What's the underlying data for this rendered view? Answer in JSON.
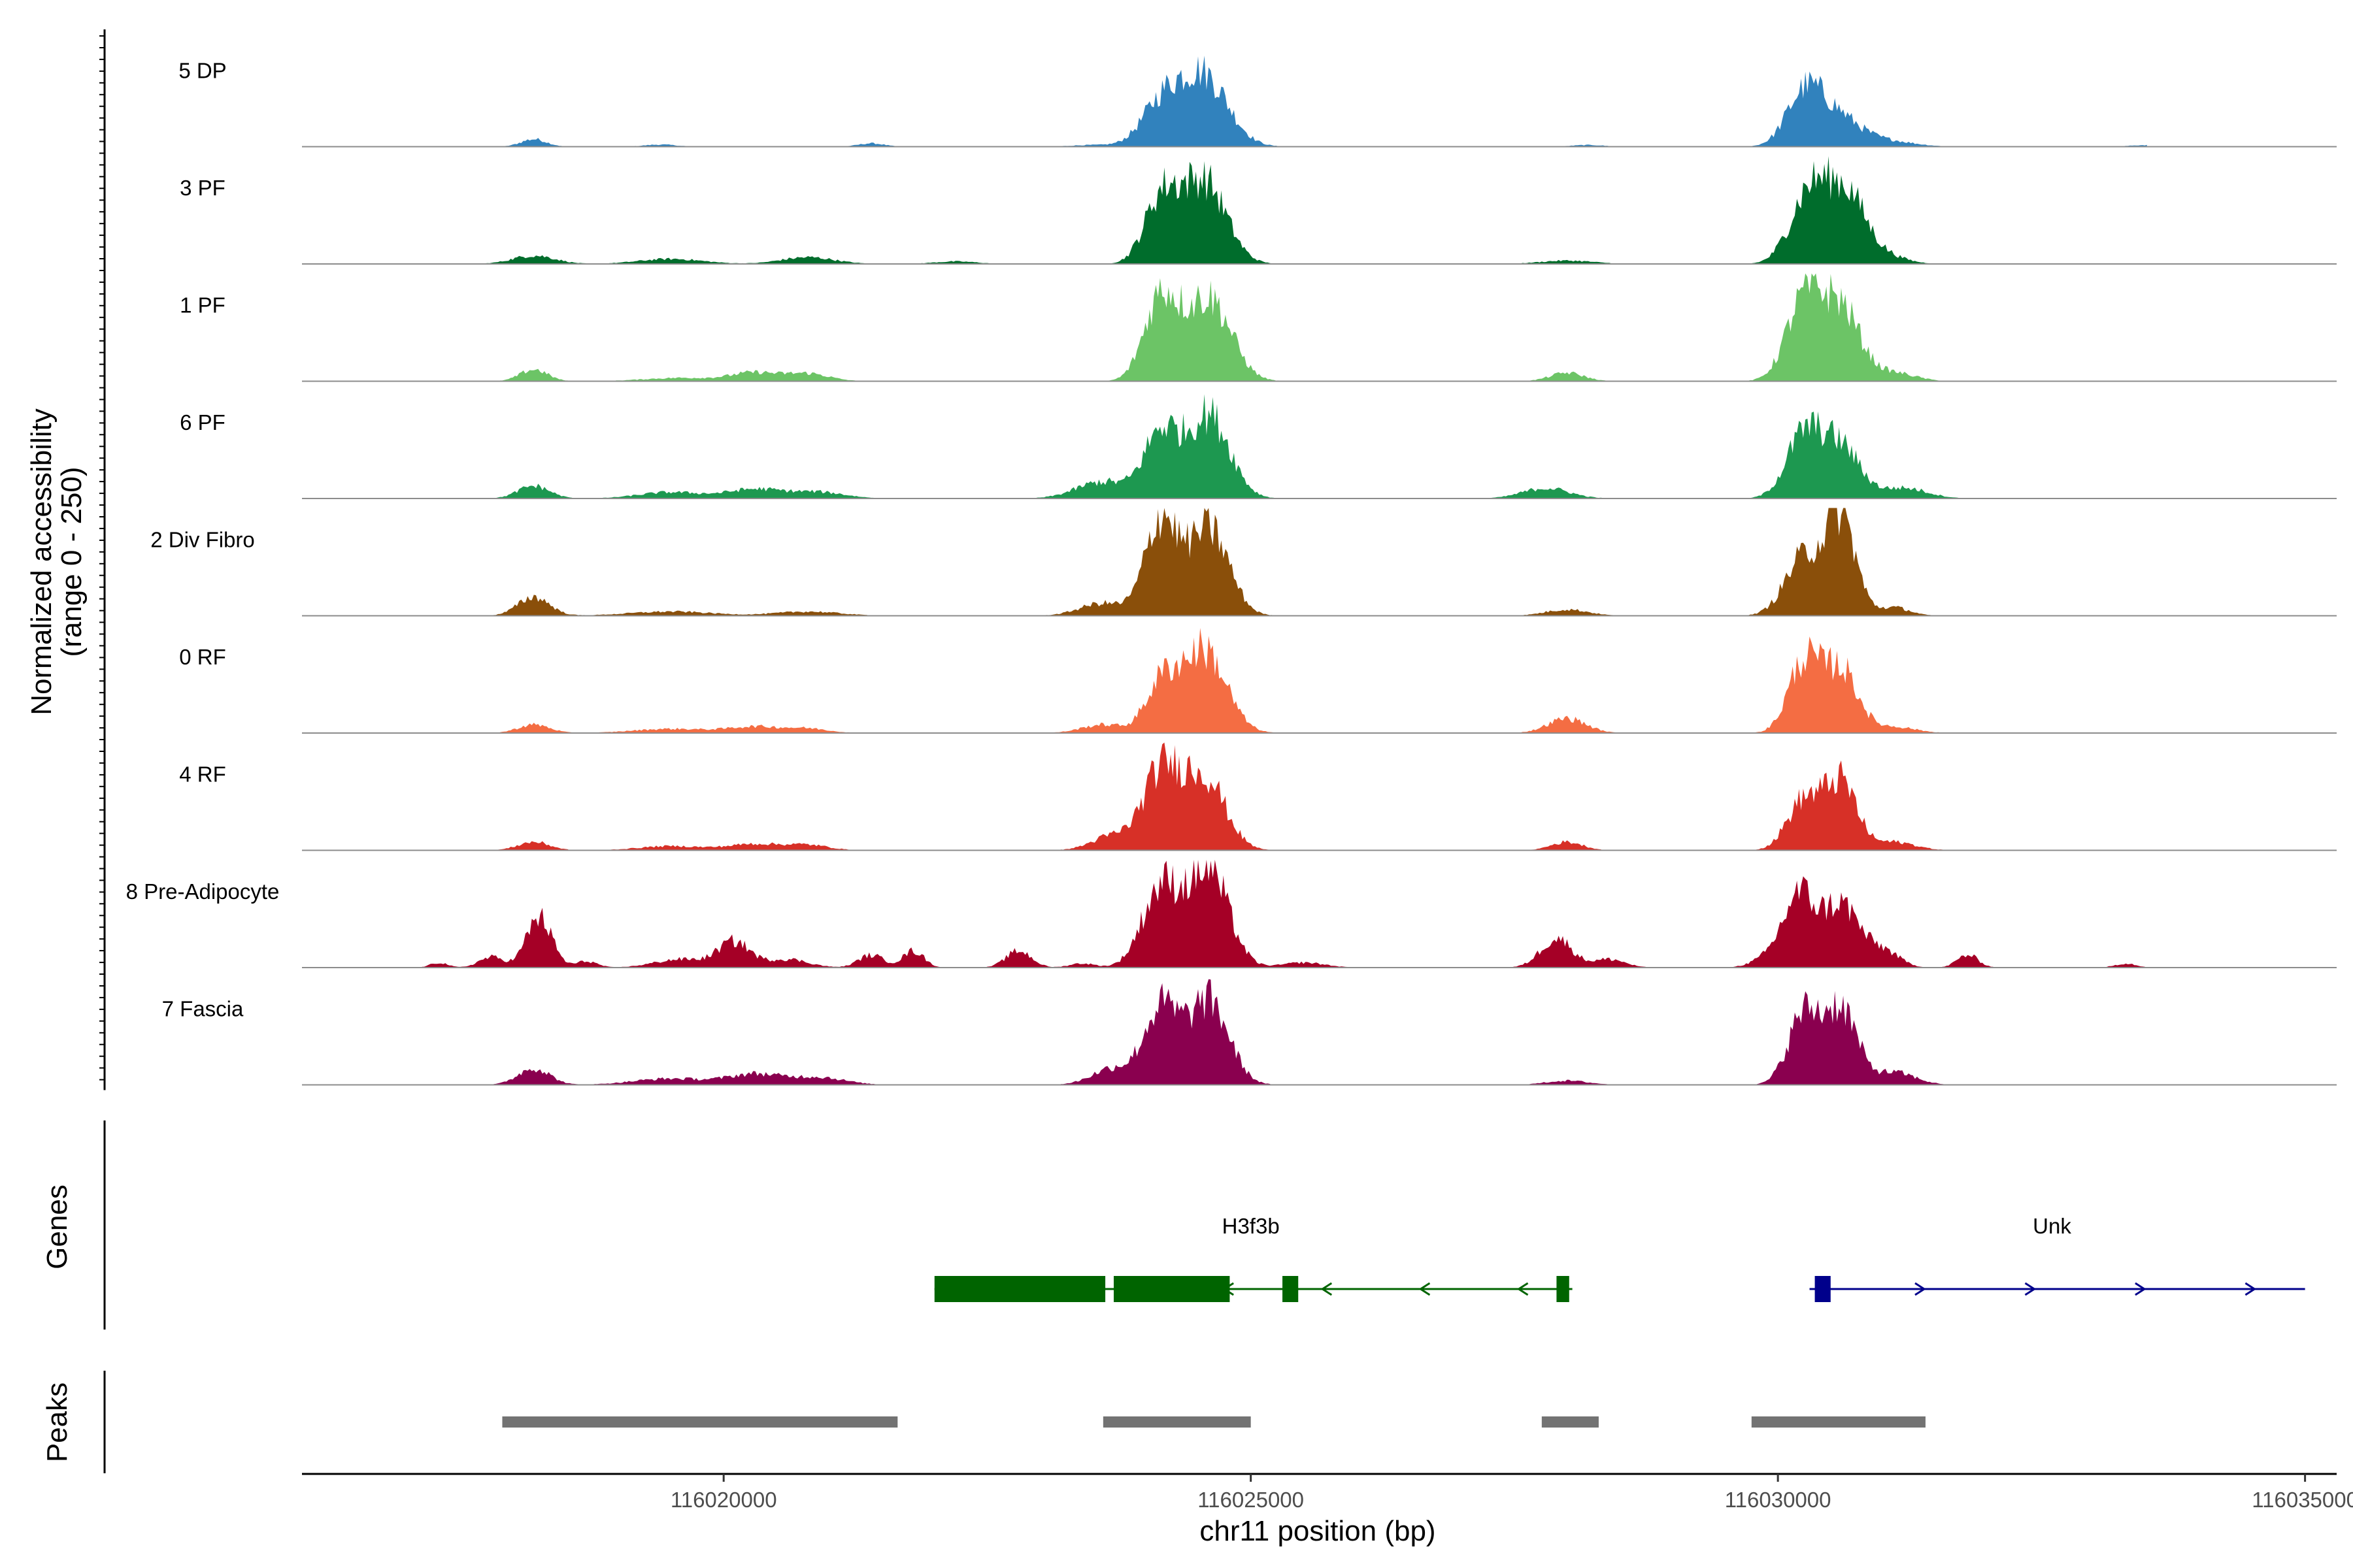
{
  "chart_data": {
    "type": "area",
    "chromosome": "chr11",
    "xlabel": "chr11 position (bp)",
    "ylabel_line1": "Normalized accessibility",
    "ylabel_line2": "(range 0 - 250)",
    "y_range": [
      0,
      250
    ],
    "x_range": [
      116016000,
      116035300
    ],
    "x_ticks": [
      116020000,
      116025000,
      116030000,
      116035000
    ],
    "x_tick_labels": [
      "116020000",
      "116025000",
      "116030000",
      "116035000"
    ],
    "genes_label": "Genes",
    "peaks_label": "Peaks",
    "tracks": [
      {
        "name": "5 DP",
        "color": "#3182bd",
        "peaks": [
          [
            116018200,
            18,
            120
          ],
          [
            116019400,
            5,
            150
          ],
          [
            116021400,
            8,
            120
          ],
          [
            116023500,
            4,
            200
          ],
          [
            116024150,
            95,
            190
          ],
          [
            116024550,
            170,
            230
          ],
          [
            116028200,
            4,
            150
          ],
          [
            116030250,
            120,
            170
          ],
          [
            116030550,
            70,
            210
          ],
          [
            116031000,
            15,
            260
          ],
          [
            116033500,
            4,
            150
          ]
        ]
      },
      {
        "name": "3 PF",
        "color": "#006d2c",
        "peaks": [
          [
            116018200,
            20,
            200
          ],
          [
            116019500,
            12,
            300
          ],
          [
            116020800,
            16,
            250
          ],
          [
            116022200,
            6,
            200
          ],
          [
            116024150,
            150,
            160
          ],
          [
            116024550,
            200,
            210
          ],
          [
            116028000,
            8,
            250
          ],
          [
            116030300,
            170,
            180
          ],
          [
            116030650,
            160,
            180
          ],
          [
            116031000,
            20,
            200
          ]
        ]
      },
      {
        "name": "1 PF",
        "color": "#6cc466",
        "peaks": [
          [
            116018200,
            28,
            130
          ],
          [
            116019600,
            8,
            350
          ],
          [
            116020300,
            20,
            220
          ],
          [
            116020800,
            18,
            200
          ],
          [
            116024150,
            200,
            160
          ],
          [
            116024600,
            200,
            210
          ],
          [
            116028000,
            20,
            160
          ],
          [
            116030250,
            190,
            170
          ],
          [
            116030600,
            170,
            180
          ],
          [
            116031100,
            20,
            200
          ]
        ]
      },
      {
        "name": "6 PF",
        "color": "#1d9850",
        "peaks": [
          [
            116018200,
            30,
            150
          ],
          [
            116019500,
            15,
            300
          ],
          [
            116020300,
            22,
            260
          ],
          [
            116020900,
            15,
            250
          ],
          [
            116023600,
            40,
            250
          ],
          [
            116024150,
            155,
            160
          ],
          [
            116024600,
            200,
            200
          ],
          [
            116027800,
            25,
            220
          ],
          [
            116030250,
            150,
            170
          ],
          [
            116030600,
            120,
            180
          ],
          [
            116031200,
            25,
            220
          ]
        ]
      },
      {
        "name": "2 Div Fibro",
        "color": "#8a4f0a",
        "peaks": [
          [
            116018200,
            45,
            150
          ],
          [
            116019500,
            10,
            400
          ],
          [
            116020800,
            10,
            300
          ],
          [
            116023600,
            30,
            220
          ],
          [
            116024150,
            230,
            150
          ],
          [
            116024600,
            210,
            190
          ],
          [
            116028000,
            15,
            200
          ],
          [
            116030250,
            140,
            180
          ],
          [
            116030600,
            230,
            140
          ],
          [
            116031100,
            20,
            150
          ]
        ]
      },
      {
        "name": "0 RF",
        "color": "#f46d43",
        "peaks": [
          [
            116018200,
            20,
            150
          ],
          [
            116019500,
            10,
            350
          ],
          [
            116020300,
            15,
            250
          ],
          [
            116020800,
            10,
            200
          ],
          [
            116023600,
            20,
            200
          ],
          [
            116024150,
            110,
            150
          ],
          [
            116024550,
            200,
            210
          ],
          [
            116028000,
            35,
            180
          ],
          [
            116030250,
            170,
            150
          ],
          [
            116030600,
            150,
            160
          ],
          [
            116031100,
            15,
            200
          ]
        ]
      },
      {
        "name": "4 RF",
        "color": "#d73027",
        "peaks": [
          [
            116018200,
            20,
            150
          ],
          [
            116019500,
            10,
            300
          ],
          [
            116020300,
            15,
            250
          ],
          [
            116020800,
            12,
            200
          ],
          [
            116023700,
            35,
            200
          ],
          [
            116024150,
            180,
            170
          ],
          [
            116024550,
            180,
            200
          ],
          [
            116028000,
            20,
            150
          ],
          [
            116030250,
            120,
            160
          ],
          [
            116030600,
            160,
            150
          ],
          [
            116031100,
            20,
            200
          ]
        ]
      },
      {
        "name": "8 Pre-Adipocyte",
        "color": "#a50026",
        "peaks": [
          [
            116017300,
            12,
            80
          ],
          [
            116017800,
            25,
            120
          ],
          [
            116018250,
            120,
            120
          ],
          [
            116018700,
            15,
            100
          ],
          [
            116019600,
            20,
            250
          ],
          [
            116020100,
            60,
            150
          ],
          [
            116020600,
            20,
            200
          ],
          [
            116021400,
            30,
            120
          ],
          [
            116021800,
            40,
            100
          ],
          [
            116022800,
            40,
            120
          ],
          [
            116023400,
            10,
            120
          ],
          [
            116024150,
            190,
            180
          ],
          [
            116024600,
            230,
            190
          ],
          [
            116025500,
            12,
            200
          ],
          [
            116027900,
            70,
            150
          ],
          [
            116028400,
            20,
            150
          ],
          [
            116029900,
            20,
            150
          ],
          [
            116030200,
            170,
            150
          ],
          [
            116030600,
            150,
            170
          ],
          [
            116031000,
            40,
            150
          ],
          [
            116031800,
            30,
            100
          ],
          [
            116033300,
            10,
            100
          ],
          [
            116034800,
            15,
            80
          ]
        ]
      },
      {
        "name": "7 Fascia",
        "color": "#8a004f",
        "peaks": [
          [
            116018200,
            40,
            150
          ],
          [
            116019500,
            15,
            350
          ],
          [
            116020300,
            25,
            250
          ],
          [
            116020900,
            18,
            250
          ],
          [
            116023700,
            40,
            200
          ],
          [
            116024150,
            180,
            160
          ],
          [
            116024600,
            200,
            190
          ],
          [
            116028000,
            10,
            200
          ],
          [
            116030250,
            170,
            150
          ],
          [
            116030600,
            180,
            150
          ],
          [
            116031100,
            30,
            200
          ]
        ]
      }
    ],
    "genes": [
      {
        "name": "H3f3b",
        "strand": "-",
        "color": "#006400",
        "start": 116022000,
        "end": 116028050,
        "exons": [
          [
            116022000,
            116023620
          ],
          [
            116023700,
            116024800
          ],
          [
            116025300,
            116025450
          ],
          [
            116027900,
            116028020
          ]
        ],
        "label_position": 116025000
      },
      {
        "name": "Unk",
        "strand": "+",
        "color": "#00008b",
        "start": 116030300,
        "end": 116035000,
        "exons": [
          [
            116030350,
            116030500
          ]
        ],
        "label_position": 116032600
      }
    ],
    "peaks": [
      [
        116017900,
        116021650
      ],
      [
        116023600,
        116025000
      ],
      [
        116027760,
        116028300
      ],
      [
        116029750,
        116031400
      ]
    ]
  }
}
